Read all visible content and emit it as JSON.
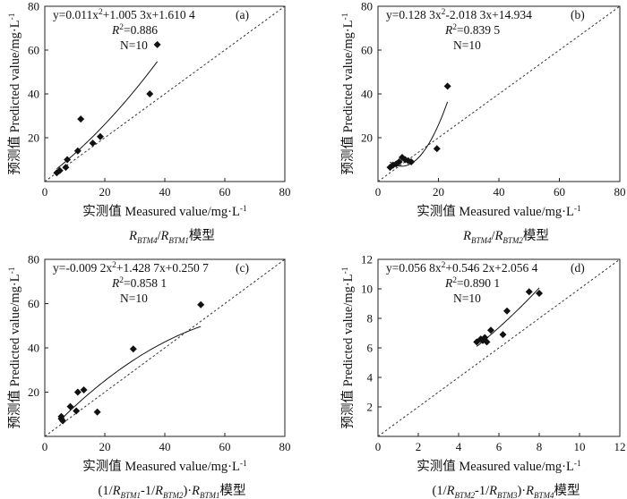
{
  "chart_data": [
    {
      "type": "scatter",
      "panel_label": "(a)",
      "equation": {
        "pre": "y=0.011x",
        "sup": "2",
        "post": "+1.005 3x+1.610 4"
      },
      "r2": {
        "pre": "R",
        "sup": "2",
        "post": "=0.886"
      },
      "n_text": "N=10",
      "xlabel": "实测值 Measured value/mg·L",
      "ylabel": "预测值 Predicted value/mg·L",
      "unit_sup": "-1",
      "caption_parts": [
        {
          "t": "R",
          "i": true
        },
        {
          "t": "BTM4",
          "sub": true,
          "i": true
        },
        {
          "t": "/"
        },
        {
          "t": "R",
          "i": true
        },
        {
          "t": "BTM1",
          "sub": true,
          "i": true
        },
        {
          "t": "模型"
        }
      ],
      "xlim": [
        0,
        80
      ],
      "ylim": [
        0,
        80
      ],
      "xticks": [
        0,
        20,
        40,
        60,
        80
      ],
      "yticks": [
        20,
        40,
        60,
        80
      ],
      "points": [
        [
          4,
          4
        ],
        [
          5,
          5
        ],
        [
          7,
          6.5
        ],
        [
          7.5,
          10
        ],
        [
          11,
          14
        ],
        [
          12,
          28.5
        ],
        [
          16,
          17.5
        ],
        [
          18.5,
          20.5
        ],
        [
          35,
          40
        ],
        [
          37.5,
          62.5
        ]
      ],
      "fit": {
        "coef": [
          0.011,
          1.0053,
          1.6104
        ],
        "range": [
          4,
          37.5
        ]
      }
    },
    {
      "type": "scatter",
      "panel_label": "(b)",
      "equation": {
        "pre": "y=0.128 3x",
        "sup": "2",
        "post": "-2.018 3x+14.934"
      },
      "r2": {
        "pre": "R",
        "sup": "2",
        "post": "=0.839 5"
      },
      "n_text": "N=10",
      "xlabel": "实测值 Measured value/mg·L",
      "ylabel": "预测值 Predicted value/mg·L",
      "unit_sup": "-1",
      "caption_parts": [
        {
          "t": "R",
          "i": true
        },
        {
          "t": "BTM4",
          "sub": true,
          "i": true
        },
        {
          "t": "/"
        },
        {
          "t": "R",
          "i": true
        },
        {
          "t": "BTM2",
          "sub": true,
          "i": true
        },
        {
          "t": "模型"
        }
      ],
      "xlim": [
        0,
        80
      ],
      "ylim": [
        0,
        80
      ],
      "xticks": [
        0,
        20,
        40,
        60,
        80
      ],
      "yticks": [
        20,
        40,
        60,
        80
      ],
      "points": [
        [
          4,
          6.5
        ],
        [
          5,
          7.5
        ],
        [
          6,
          8
        ],
        [
          8,
          11
        ],
        [
          9,
          10
        ],
        [
          10,
          9.5
        ],
        [
          11,
          9
        ],
        [
          19.5,
          15
        ],
        [
          23,
          43.5
        ],
        [
          7,
          9
        ]
      ],
      "fit": {
        "coef": [
          0.1283,
          -2.0183,
          14.934
        ],
        "range": [
          4,
          23
        ]
      }
    },
    {
      "type": "scatter",
      "panel_label": "(c)",
      "equation": {
        "pre": "y=-0.009 2x",
        "sup": "2",
        "post": "+1.428 7x+0.250 7"
      },
      "r2": {
        "pre": "R",
        "sup": "2",
        "post": "=0.858 1"
      },
      "n_text": "N=10",
      "xlabel": "实测值 Measured value/mg·L",
      "ylabel": "预测值 Predicted value/mg·L",
      "unit_sup": "-1",
      "caption_parts": [
        {
          "t": "(1/"
        },
        {
          "t": "R",
          "i": true
        },
        {
          "t": "BTM1",
          "sub": true,
          "i": true
        },
        {
          "t": "-1/"
        },
        {
          "t": "R",
          "i": true
        },
        {
          "t": "BTM2",
          "sub": true,
          "i": true
        },
        {
          "t": ")·"
        },
        {
          "t": "R",
          "i": true
        },
        {
          "t": "BTM1",
          "sub": true,
          "i": true
        },
        {
          "t": "模型"
        }
      ],
      "xlim": [
        0,
        80
      ],
      "ylim": [
        0,
        80
      ],
      "xticks": [
        0,
        20,
        40,
        60,
        80
      ],
      "yticks": [
        20,
        40,
        60,
        80
      ],
      "points": [
        [
          5.5,
          8
        ],
        [
          5.5,
          9
        ],
        [
          8.5,
          13.5
        ],
        [
          10.5,
          11.5
        ],
        [
          11,
          20
        ],
        [
          13,
          21
        ],
        [
          17.5,
          11
        ],
        [
          29.5,
          39.5
        ],
        [
          52,
          59.5
        ],
        [
          6,
          7
        ]
      ],
      "fit": {
        "coef": [
          -0.0092,
          1.4287,
          0.2507
        ],
        "range": [
          5.5,
          52
        ]
      }
    },
    {
      "type": "scatter",
      "panel_label": "(d)",
      "equation": {
        "pre": "y=0.056 8x",
        "sup": "2",
        "post": "+0.546 2x+2.056 4"
      },
      "r2": {
        "pre": "R",
        "sup": "2",
        "post": "=0.890 1"
      },
      "n_text": "N=10",
      "xlabel": "实测值 Measured value/mg·L",
      "ylabel": "预测值 Predicted value/mg·L",
      "unit_sup": "-1",
      "caption_parts": [
        {
          "t": "(1/"
        },
        {
          "t": "R",
          "i": true
        },
        {
          "t": "BTM2",
          "sub": true,
          "i": true
        },
        {
          "t": "-1/"
        },
        {
          "t": "R",
          "i": true
        },
        {
          "t": "BTM3",
          "sub": true,
          "i": true
        },
        {
          "t": ")·"
        },
        {
          "t": "R",
          "i": true
        },
        {
          "t": "BTM4",
          "sub": true,
          "i": true
        },
        {
          "t": "模型"
        }
      ],
      "xlim": [
        0,
        12
      ],
      "ylim": [
        0,
        12
      ],
      "xticks": [
        0,
        2,
        4,
        6,
        8,
        10,
        12
      ],
      "yticks": [
        2,
        4,
        6,
        8,
        10,
        12
      ],
      "points": [
        [
          4.9,
          6.4
        ],
        [
          5.1,
          6.6
        ],
        [
          5.2,
          6.5
        ],
        [
          5.4,
          6.4
        ],
        [
          5.6,
          7.2
        ],
        [
          6.2,
          6.9
        ],
        [
          6.4,
          8.5
        ],
        [
          7.5,
          9.8
        ],
        [
          8.0,
          9.7
        ],
        [
          5.3,
          6.7
        ]
      ],
      "fit": {
        "coef": [
          0.0568,
          0.5462,
          2.0564
        ],
        "range": [
          4.9,
          8.0
        ]
      }
    }
  ]
}
